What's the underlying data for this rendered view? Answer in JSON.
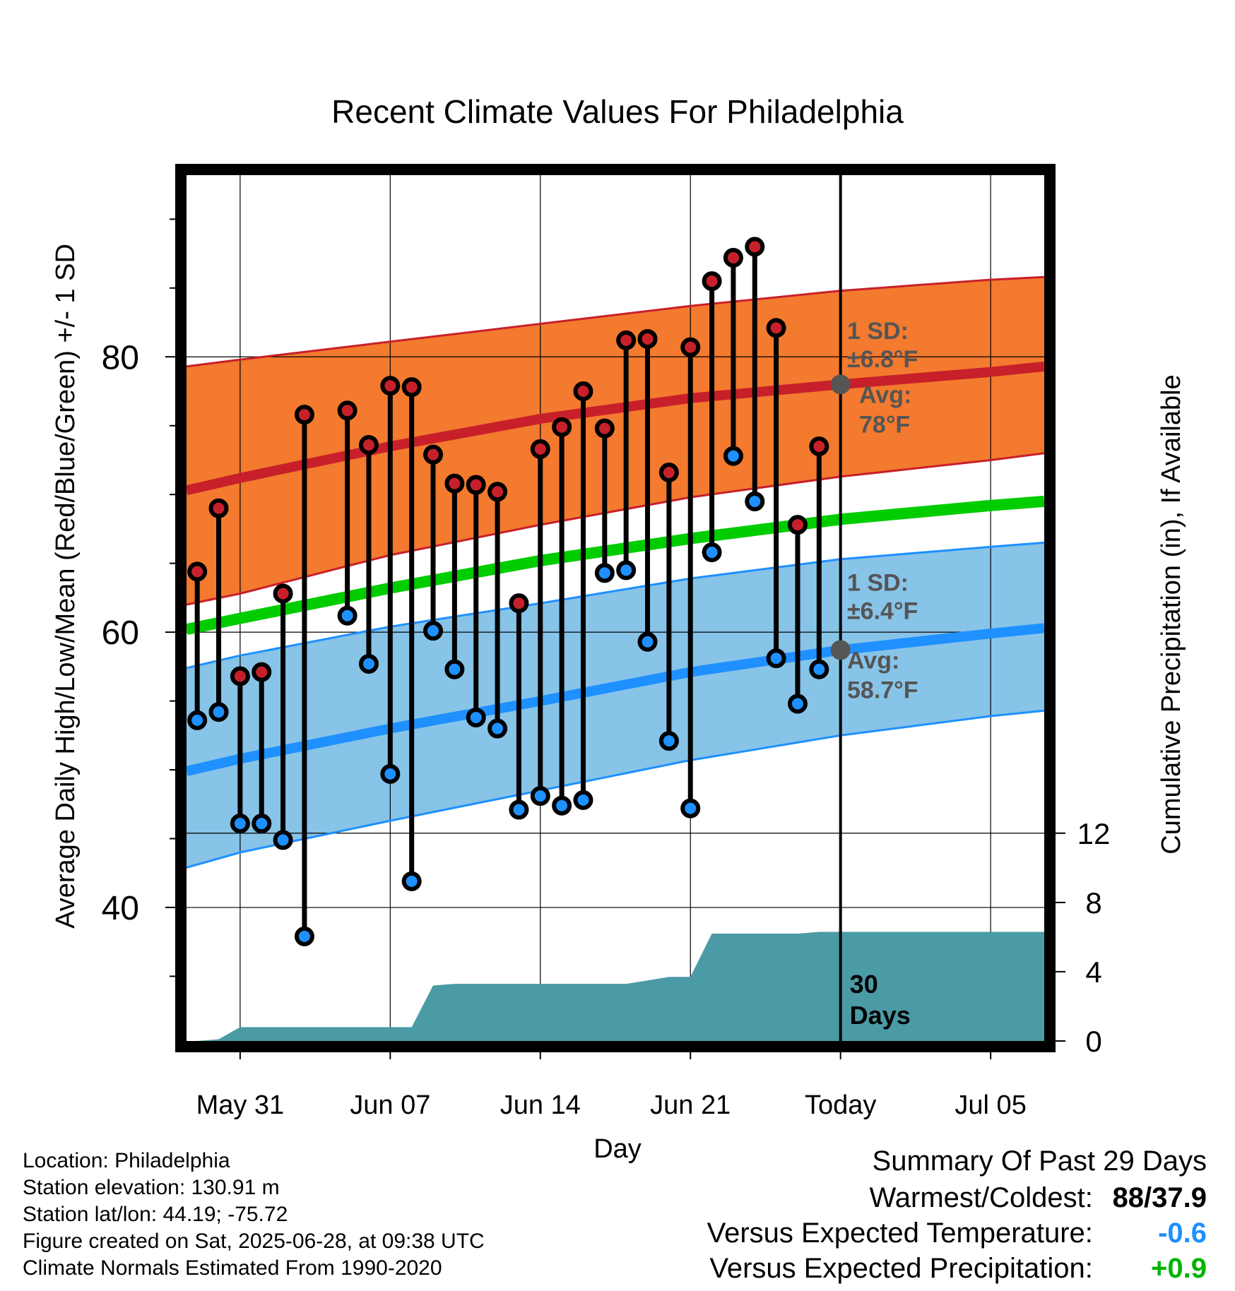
{
  "chart_data": {
    "type": "line",
    "title": "Recent Climate Values For Philadelphia",
    "xlabel": "Day",
    "ylabel": "Average Daily High/Low/Mean (Red/Blue/Green) +/- 1 SD",
    "y2label": "Cumulative Precipitation (in), If Available",
    "x_ticks": [
      "May 31",
      "Jun 07",
      "Jun 14",
      "Jun 21",
      "Today",
      "Jul 05"
    ],
    "x_tick_days": [
      0,
      7,
      14,
      21,
      28,
      35
    ],
    "xlim": [
      -2.5,
      37.5
    ],
    "today_day": 28,
    "ylim": [
      30.3,
      93.2
    ],
    "y_ticks": [
      40,
      60,
      80
    ],
    "y2lim": [
      0,
      50
    ],
    "y2_ticks": [
      0,
      4,
      8,
      12
    ],
    "grid": true,
    "today_label": "30 Days",
    "normals": {
      "x": [
        -2.5,
        0,
        7,
        14,
        21,
        28,
        35,
        37.5
      ],
      "high_avg": [
        70.3,
        71.2,
        73.5,
        75.5,
        77.0,
        78.0,
        78.9,
        79.3
      ],
      "high_sd_upper": [
        79.3,
        79.8,
        81.1,
        82.4,
        83.7,
        84.8,
        85.6,
        85.8
      ],
      "high_sd_lower": [
        62.0,
        62.8,
        65.6,
        67.8,
        69.8,
        71.3,
        72.5,
        73.0
      ],
      "mean_avg": [
        60.2,
        61.0,
        63.2,
        65.2,
        66.8,
        68.2,
        69.2,
        69.5
      ],
      "low_avg": [
        49.9,
        50.8,
        53.0,
        55.0,
        57.1,
        58.7,
        59.9,
        60.3
      ],
      "low_sd_upper": [
        57.4,
        58.3,
        60.4,
        62.1,
        63.9,
        65.3,
        66.2,
        66.5
      ],
      "low_sd_lower": [
        42.9,
        44.0,
        46.3,
        48.5,
        50.7,
        52.5,
        53.9,
        54.3
      ]
    },
    "sd_labels": [
      {
        "line1": "1 SD:",
        "line2": "±6.8°F",
        "y": 81.3
      },
      {
        "line1": "1 SD:",
        "line2": "±6.4°F",
        "y": 63.0
      }
    ],
    "avg_labels": [
      {
        "line1": "Avg:",
        "value": "78",
        "unit": "°F",
        "y": 78.0
      },
      {
        "line1": "Avg:",
        "value": "58.7",
        "unit": "°F",
        "y": 58.7
      }
    ],
    "daily": {
      "days": [
        -2,
        -1,
        0,
        1,
        2,
        3,
        5,
        6,
        7,
        8,
        9,
        10,
        11,
        12,
        13,
        14,
        15,
        16,
        17,
        18,
        19,
        20,
        21,
        22,
        23,
        24,
        25,
        26,
        27
      ],
      "high": [
        64.4,
        69.0,
        56.8,
        57.1,
        62.8,
        75.8,
        76.1,
        73.6,
        77.9,
        77.8,
        72.9,
        70.8,
        70.7,
        70.2,
        62.1,
        73.3,
        74.9,
        77.5,
        74.8,
        81.2,
        81.3,
        71.6,
        80.7,
        85.5,
        87.2,
        88.0,
        82.1,
        67.8,
        73.5
      ],
      "low": [
        53.6,
        54.2,
        46.1,
        46.1,
        44.9,
        37.9,
        61.2,
        57.7,
        49.7,
        41.9,
        60.1,
        57.3,
        53.8,
        53.0,
        47.1,
        48.1,
        47.4,
        47.8,
        64.3,
        64.5,
        59.3,
        52.1,
        47.2,
        65.8,
        72.8,
        69.5,
        58.1,
        54.8,
        57.3
      ]
    },
    "precip": {
      "x": [
        -2.5,
        -2,
        -1,
        0,
        1,
        3,
        5,
        7,
        8,
        9,
        10,
        12,
        14,
        16,
        18,
        19,
        20,
        21,
        22,
        23,
        24,
        25,
        26,
        27,
        28,
        37.5
      ],
      "y": [
        0.0,
        0.0,
        0.1,
        0.8,
        0.8,
        0.8,
        0.8,
        0.8,
        0.8,
        3.2,
        3.3,
        3.3,
        3.3,
        3.3,
        3.3,
        3.5,
        3.7,
        3.7,
        6.2,
        6.2,
        6.2,
        6.2,
        6.2,
        6.3,
        6.3,
        6.3
      ],
      "color": "#4a9ba5"
    },
    "colors": {
      "high": "#c8202a",
      "high_band": "#f37a2e",
      "mean": "#00cc00",
      "low": "#1e90ff",
      "low_band": "#88c3e8",
      "label": "#555555",
      "warm_cold": "#000000",
      "temp_anomaly": "#1e90ff",
      "precip_anomaly": "#00b300"
    }
  },
  "footer": {
    "location": "Location: Philadelphia",
    "elevation": "Station elevation: 130.91 m",
    "latlon": "Station lat/lon: 44.19; -75.72",
    "created": "Figure created on Sat, 2025-06-28, at 09:38 UTC",
    "normals": "Climate Normals Estimated From 1990-2020"
  },
  "summary": {
    "heading": "Summary Of Past 29 Days",
    "warm_cold_label": "Warmest/Coldest:",
    "warm_cold_value": "88/37.9",
    "temp_label": "Versus Expected Temperature:",
    "temp_value": "-0.6",
    "precip_label": "Versus Expected Precipitation:",
    "precip_value": "+0.9"
  }
}
